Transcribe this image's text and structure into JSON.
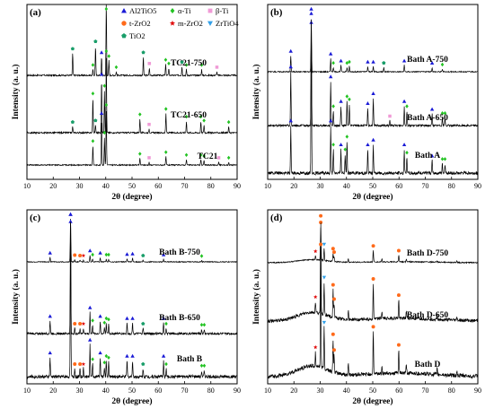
{
  "chart_data": [
    {
      "type": "line",
      "panel": "(a)",
      "xlabel": "2θ (degree)",
      "ylabel": "Intensity (a. u.)",
      "xlim": [
        10,
        90
      ],
      "xticks": [
        10,
        20,
        30,
        40,
        50,
        60,
        70,
        80,
        90
      ],
      "legend": {
        "placement": "top-right",
        "entries": [
          {
            "label": "Al2TiO5",
            "symbol": "triangle",
            "color": "#1a1ad6"
          },
          {
            "label": "α-Ti",
            "symbol": "diamond",
            "color": "#22c322"
          },
          {
            "label": "β-Ti",
            "symbol": "square",
            "color": "#f09ad6"
          },
          {
            "label": "t-ZrO2",
            "symbol": "circle",
            "color": "#ff6a1a"
          },
          {
            "label": "m-ZrO2",
            "symbol": "star",
            "color": "#e00000"
          },
          {
            "label": "ZrTiO4",
            "symbol": "triangle-down",
            "color": "#33a0e8"
          },
          {
            "label": "TiO2",
            "symbol": "pentagon",
            "color": "#1a9e6a"
          }
        ]
      },
      "series": [
        {
          "name": "TC21-750",
          "peaks": [
            [
              27.4,
              0.3
            ],
            [
              35.1,
              0.08
            ],
            [
              36.1,
              0.4
            ],
            [
              38.4,
              0.25
            ],
            [
              40.2,
              1.0
            ],
            [
              41.2,
              0.2
            ],
            [
              44.0,
              0.05
            ],
            [
              54.3,
              0.25
            ],
            [
              56.6,
              0.1
            ],
            [
              62.8,
              0.15
            ],
            [
              64.0,
              0.1
            ],
            [
              69.0,
              0.12
            ],
            [
              70.7,
              0.08
            ],
            [
              76.5,
              0.08
            ],
            [
              82.3,
              0.05
            ]
          ]
        },
        {
          "name": "TC21-650",
          "peaks": [
            [
              27.4,
              0.08
            ],
            [
              35.1,
              0.45
            ],
            [
              36.1,
              0.1
            ],
            [
              38.4,
              0.7
            ],
            [
              39.5,
              0.55
            ],
            [
              40.2,
              1.0
            ],
            [
              53.0,
              0.18
            ],
            [
              56.5,
              0.05
            ],
            [
              62.9,
              0.25
            ],
            [
              70.7,
              0.15
            ],
            [
              76.2,
              0.15
            ],
            [
              77.4,
              0.1
            ],
            [
              86.8,
              0.08
            ]
          ]
        },
        {
          "name": "TC21",
          "peaks": [
            [
              35.1,
              0.35
            ],
            [
              38.4,
              0.85
            ],
            [
              39.5,
              0.5
            ],
            [
              40.2,
              1.0
            ],
            [
              53.0,
              0.12
            ],
            [
              56.5,
              0.05
            ],
            [
              62.9,
              0.15
            ],
            [
              70.7,
              0.1
            ],
            [
              76.2,
              0.1
            ],
            [
              77.4,
              0.08
            ],
            [
              83.0,
              0.05
            ],
            [
              86.8,
              0.05
            ]
          ]
        }
      ]
    },
    {
      "type": "line",
      "panel": "(b)",
      "xlabel": "2θ (degree)",
      "ylabel": "Intensity (a. u.)",
      "xlim": [
        10,
        90
      ],
      "xticks": [
        10,
        20,
        30,
        40,
        50,
        60,
        70,
        80,
        90
      ],
      "series": [
        {
          "name": "Bath A-750",
          "peaks": [
            [
              18.8,
              0.3
            ],
            [
              26.6,
              1.0
            ],
            [
              34.0,
              0.25
            ],
            [
              35.0,
              0.08
            ],
            [
              37.9,
              0.12
            ],
            [
              40.2,
              0.08
            ],
            [
              41.1,
              0.1
            ],
            [
              48.1,
              0.1
            ],
            [
              50.2,
              0.1
            ],
            [
              54.2,
              0.08
            ],
            [
              62.0,
              0.12
            ],
            [
              72.6,
              0.08
            ],
            [
              76.5,
              0.05
            ]
          ]
        },
        {
          "name": "Bath A-650",
          "peaks": [
            [
              18.8,
              0.55
            ],
            [
              26.6,
              1.0
            ],
            [
              34.0,
              0.45
            ],
            [
              35.0,
              0.15
            ],
            [
              37.9,
              0.2
            ],
            [
              40.2,
              0.25
            ],
            [
              41.1,
              0.22
            ],
            [
              48.1,
              0.18
            ],
            [
              50.2,
              0.28
            ],
            [
              56.5,
              0.05
            ],
            [
              62.0,
              0.2
            ],
            [
              63.0,
              0.15
            ],
            [
              72.6,
              0.12
            ],
            [
              76.5,
              0.08
            ],
            [
              77.5,
              0.08
            ]
          ]
        },
        {
          "name": "Bath A",
          "peaks": [
            [
              18.8,
              0.3
            ],
            [
              26.6,
              1.0
            ],
            [
              34.0,
              0.3
            ],
            [
              35.0,
              0.15
            ],
            [
              37.9,
              0.15
            ],
            [
              39.5,
              0.12
            ],
            [
              40.2,
              0.2
            ],
            [
              48.1,
              0.15
            ],
            [
              50.2,
              0.18
            ],
            [
              62.0,
              0.15
            ],
            [
              63.0,
              0.1
            ],
            [
              72.6,
              0.08
            ],
            [
              76.5,
              0.06
            ],
            [
              77.5,
              0.06
            ]
          ]
        }
      ]
    },
    {
      "type": "line",
      "panel": "(c)",
      "xlabel": "2θ (degree)",
      "ylabel": "Intensity (a. u.)",
      "xlim": [
        10,
        90
      ],
      "xticks": [
        10,
        20,
        30,
        40,
        50,
        60,
        70,
        80,
        90
      ],
      "series": [
        {
          "name": "Bath B-750",
          "peaks": [
            [
              18.8,
              0.1
            ],
            [
              26.6,
              1.0
            ],
            [
              28.2,
              0.05
            ],
            [
              30.2,
              0.04
            ],
            [
              31.5,
              0.04
            ],
            [
              34.0,
              0.15
            ],
            [
              35.0,
              0.06
            ],
            [
              37.9,
              0.1
            ],
            [
              40.2,
              0.06
            ],
            [
              41.1,
              0.06
            ],
            [
              48.1,
              0.07
            ],
            [
              50.2,
              0.08
            ],
            [
              54.2,
              0.04
            ],
            [
              62.0,
              0.06
            ],
            [
              76.5,
              0.03
            ]
          ]
        },
        {
          "name": "Bath B-650",
          "peaks": [
            [
              18.8,
              0.12
            ],
            [
              26.6,
              1.0
            ],
            [
              28.2,
              0.05
            ],
            [
              30.2,
              0.05
            ],
            [
              31.5,
              0.05
            ],
            [
              34.0,
              0.2
            ],
            [
              35.0,
              0.08
            ],
            [
              37.9,
              0.12
            ],
            [
              39.5,
              0.06
            ],
            [
              40.2,
              0.1
            ],
            [
              41.1,
              0.09
            ],
            [
              48.1,
              0.1
            ],
            [
              50.2,
              0.1
            ],
            [
              54.2,
              0.05
            ],
            [
              62.0,
              0.1
            ],
            [
              63.0,
              0.05
            ],
            [
              76.5,
              0.04
            ],
            [
              77.5,
              0.04
            ]
          ]
        },
        {
          "name": "Bath B",
          "peaks": [
            [
              18.8,
              0.12
            ],
            [
              26.6,
              1.0
            ],
            [
              28.2,
              0.05
            ],
            [
              30.2,
              0.05
            ],
            [
              31.5,
              0.05
            ],
            [
              34.0,
              0.2
            ],
            [
              35.0,
              0.08
            ],
            [
              37.9,
              0.12
            ],
            [
              39.5,
              0.06
            ],
            [
              40.2,
              0.1
            ],
            [
              41.1,
              0.09
            ],
            [
              48.1,
              0.1
            ],
            [
              50.2,
              0.1
            ],
            [
              54.2,
              0.05
            ],
            [
              62.0,
              0.1
            ],
            [
              63.0,
              0.05
            ],
            [
              76.5,
              0.04
            ],
            [
              77.5,
              0.04
            ]
          ]
        }
      ]
    },
    {
      "type": "line",
      "panel": "(d)",
      "xlabel": "2θ (degree)",
      "ylabel": "Intensity (a. u.)",
      "xlim": [
        10,
        90
      ],
      "xticks": [
        10,
        20,
        30,
        40,
        50,
        60,
        70,
        80,
        90
      ],
      "series": [
        {
          "name": "Bath D-750",
          "peaks": [
            [
              28.2,
              0.12
            ],
            [
              30.2,
              1.0
            ],
            [
              31.5,
              0.35
            ],
            [
              34.9,
              0.25
            ],
            [
              35.3,
              0.15
            ],
            [
              40.7,
              0.1
            ],
            [
              50.2,
              0.35
            ],
            [
              53.5,
              0.08
            ],
            [
              59.9,
              0.2
            ],
            [
              62.8,
              0.08
            ],
            [
              74.5,
              0.05
            ],
            [
              82.0,
              0.04
            ]
          ]
        },
        {
          "name": "Bath D-650",
          "peaks": [
            [
              28.2,
              0.12
            ],
            [
              30.2,
              1.0
            ],
            [
              31.5,
              0.35
            ],
            [
              34.9,
              0.3
            ],
            [
              35.3,
              0.15
            ],
            [
              40.7,
              0.1
            ],
            [
              50.2,
              0.38
            ],
            [
              53.5,
              0.08
            ],
            [
              59.9,
              0.2
            ],
            [
              62.8,
              0.08
            ],
            [
              74.5,
              0.05
            ],
            [
              82.0,
              0.04
            ]
          ]
        },
        {
          "name": "Bath D",
          "peaks": [
            [
              28.2,
              0.12
            ],
            [
              30.2,
              1.0
            ],
            [
              31.5,
              0.35
            ],
            [
              34.9,
              0.28
            ],
            [
              35.3,
              0.15
            ],
            [
              40.7,
              0.1
            ],
            [
              50.2,
              0.36
            ],
            [
              53.5,
              0.08
            ],
            [
              59.9,
              0.2
            ],
            [
              62.8,
              0.08
            ],
            [
              74.5,
              0.05
            ],
            [
              82.0,
              0.04
            ]
          ]
        }
      ]
    }
  ]
}
